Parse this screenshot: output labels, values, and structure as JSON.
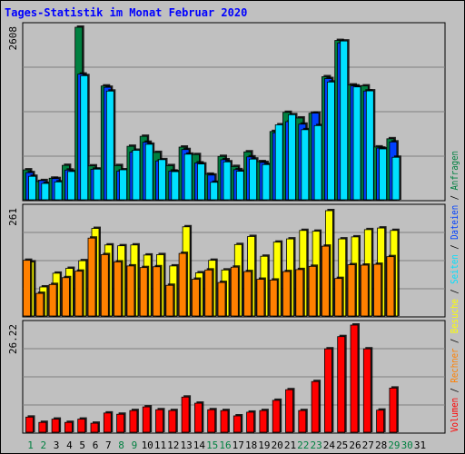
{
  "title": "Tages-Statistik im Monat Februar 2020",
  "days": [
    "1",
    "2",
    "3",
    "4",
    "5",
    "6",
    "7",
    "8",
    "9",
    "10",
    "11",
    "12",
    "13",
    "14",
    "15",
    "16",
    "17",
    "18",
    "19",
    "20",
    "21",
    "22",
    "23",
    "24",
    "25",
    "26",
    "27",
    "28",
    "29",
    "30",
    "31"
  ],
  "weekend_days": [
    1,
    2,
    8,
    9,
    15,
    16,
    22,
    23,
    29,
    30
  ],
  "legend": {
    "anfragen": "Anfragen",
    "dateien": "Dateien",
    "seiten": "Seiten",
    "besuche": "Besuche",
    "rechner": "Rechner",
    "volumen": "Volumen",
    "sep": " / "
  },
  "colors": {
    "anfragen": "#008040",
    "dateien": "#0040ff",
    "seiten": "#00e0ff",
    "besuche": "#ffff00",
    "rechner": "#ff8000",
    "volumen": "#ff0000",
    "weekend": "#008040",
    "weekday": "#000000",
    "title": "#0000ff"
  },
  "chart_data": [
    {
      "type": "bar",
      "name": "hits",
      "ymax_label": "2608",
      "ylim": [
        0,
        2608
      ],
      "series": [
        {
          "name": "Anfragen",
          "values": [
            452,
            276,
            326,
            520,
            2608,
            512,
            1720,
            517,
            808,
            959,
            715,
            516,
            796,
            683,
            386,
            655,
            503,
            724,
            576,
            1032,
            1321,
            1236,
            1308,
            1860,
            2408,
            1735,
            1721,
            798,
            922,
            0,
            0
          ]
        },
        {
          "name": "Dateien",
          "values": [
            410,
            290,
            320,
            449,
            1900,
            461,
            1700,
            434,
            721,
            869,
            587,
            434,
            759,
            557,
            373,
            605,
            455,
            648,
            564,
            1012,
            1181,
            1143,
            1310,
            1832,
            2372,
            1721,
            1644,
            781,
            874,
            0,
            0
          ]
        },
        {
          "name": "Seiten",
          "values": [
            354,
            247,
            270,
            427,
            1876,
            463,
            1643,
            453,
            748,
            839,
            606,
            425,
            689,
            541,
            264,
            573,
            431,
            615,
            532,
            1133,
            1286,
            1059,
            1121,
            1780,
            2400,
            1706,
            1646,
            769,
            642,
            0,
            0
          ]
        }
      ]
    },
    {
      "type": "bar",
      "name": "visits",
      "ymax_label": "261",
      "ylim": [
        0,
        261
      ],
      "series": [
        {
          "name": "Besuche",
          "values": [
            134,
            72,
            106,
            118,
            137,
            217,
            176,
            174,
            176,
            151,
            152,
            124,
            221,
            107,
            138,
            114,
            177,
            197,
            148,
            183,
            191,
            212,
            210,
            261,
            191,
            196,
            214,
            218,
            212,
            0,
            0
          ]
        },
        {
          "name": "Rechner",
          "values": [
            138,
            56,
            78,
            95,
            111,
            193,
            152,
            134,
            124,
            120,
            122,
            76,
            155,
            91,
            114,
            83,
            121,
            110,
            91,
            89,
            110,
            115,
            123,
            173,
            93,
            127,
            126,
            128,
            147,
            0,
            0
          ]
        }
      ]
    },
    {
      "type": "bar",
      "name": "volume",
      "ymax_label": "26.22",
      "ylim": [
        0,
        26.22
      ],
      "series": [
        {
          "name": "Volumen",
          "values": [
            3.7,
            2.4,
            3.2,
            2.4,
            3.2,
            2.2,
            4.7,
            4.4,
            5.3,
            6.2,
            5.5,
            5.3,
            8.6,
            7.1,
            5.5,
            5.3,
            4.0,
            4.9,
            5.3,
            7.8,
            10.4,
            5.3,
            12.4,
            20.4,
            23.4,
            26.22,
            20.4,
            5.4,
            10.8,
            0,
            0
          ]
        }
      ]
    }
  ]
}
